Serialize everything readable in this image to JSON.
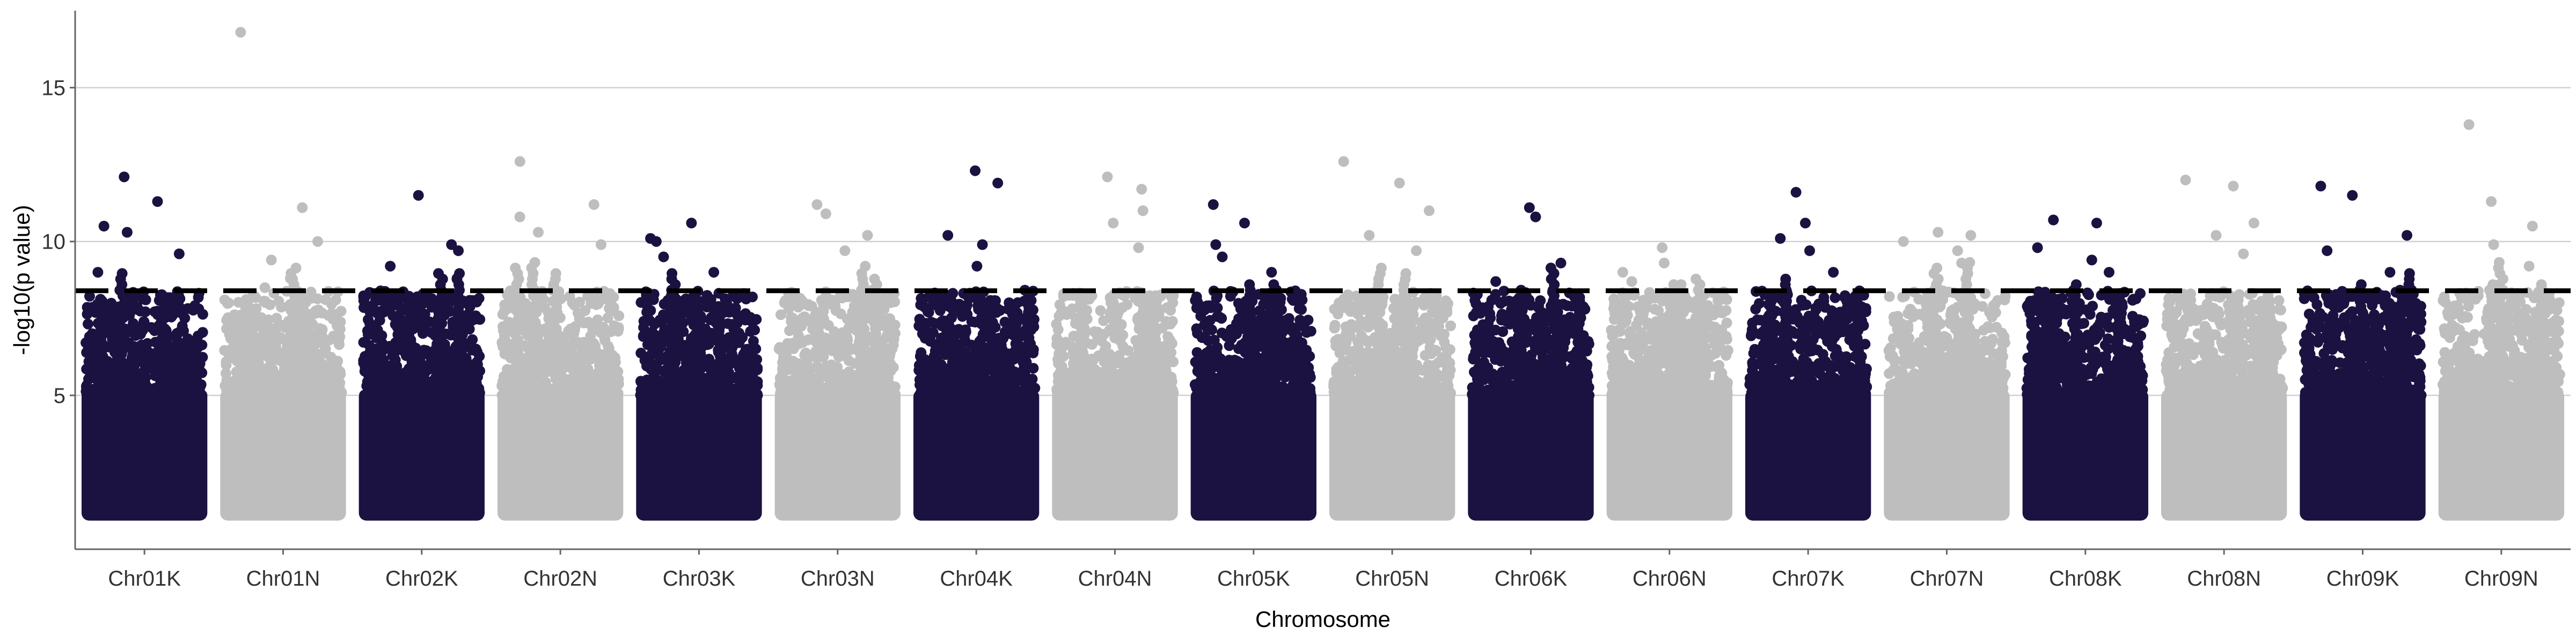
{
  "chart_data": {
    "type": "scatter",
    "subtype": "manhattan",
    "xlabel": "Chromosome",
    "ylabel": "-log10(p value)",
    "ylim": [
      0,
      17.5
    ],
    "yticks": [
      5,
      10,
      15
    ],
    "grid": "horizontal major lines",
    "legend": "none",
    "threshold": 8.4,
    "colors": {
      "odd": "#1c1241",
      "even": "#bebebe",
      "threshold": "#000000",
      "grid": "#d0d0d0",
      "axis": "#666666"
    },
    "categories": [
      "Chr01K",
      "Chr01N",
      "Chr02K",
      "Chr02N",
      "Chr03K",
      "Chr03N",
      "Chr04K",
      "Chr04N",
      "Chr05K",
      "Chr05N",
      "Chr06K",
      "Chr06N",
      "Chr07K",
      "Chr07N",
      "Chr08K",
      "Chr08N",
      "Chr09K",
      "Chr09N"
    ],
    "series": [
      {
        "category": "Chr01K",
        "peak_max": 12.1,
        "top_points": [
          10.3,
          9.6,
          9.0,
          12.1,
          11.3,
          10.5
        ]
      },
      {
        "category": "Chr01N",
        "peak_max": 16.8,
        "top_points": [
          16.8,
          11.1,
          10.0,
          9.4,
          8.8,
          8.5
        ]
      },
      {
        "category": "Chr02K",
        "peak_max": 11.5,
        "top_points": [
          11.5,
          9.9,
          9.7,
          9.2,
          8.8
        ]
      },
      {
        "category": "Chr02N",
        "peak_max": 12.6,
        "top_points": [
          12.6,
          11.2,
          10.8,
          10.3,
          9.9
        ]
      },
      {
        "category": "Chr03K",
        "peak_max": 10.6,
        "top_points": [
          10.1,
          10.6,
          10.0,
          9.5,
          9.0
        ]
      },
      {
        "category": "Chr03N",
        "peak_max": 11.2,
        "top_points": [
          11.2,
          10.9,
          10.2,
          9.7,
          9.2
        ]
      },
      {
        "category": "Chr04K",
        "peak_max": 12.3,
        "top_points": [
          12.3,
          11.9,
          10.2,
          9.9,
          9.2
        ]
      },
      {
        "category": "Chr04N",
        "peak_max": 12.1,
        "top_points": [
          12.1,
          11.7,
          11.0,
          10.6,
          9.8
        ]
      },
      {
        "category": "Chr05K",
        "peak_max": 11.2,
        "top_points": [
          11.2,
          10.6,
          9.9,
          9.5,
          9.0
        ]
      },
      {
        "category": "Chr05N",
        "peak_max": 12.6,
        "top_points": [
          12.6,
          11.9,
          11.0,
          10.2,
          9.7
        ]
      },
      {
        "category": "Chr06K",
        "peak_max": 11.1,
        "top_points": [
          11.1,
          10.8,
          9.3,
          8.7
        ]
      },
      {
        "category": "Chr06N",
        "peak_max": 9.8,
        "top_points": [
          9.8,
          9.3,
          9.0,
          8.7
        ]
      },
      {
        "category": "Chr07K",
        "peak_max": 11.6,
        "top_points": [
          11.6,
          10.6,
          10.1,
          9.7,
          9.0
        ]
      },
      {
        "category": "Chr07N",
        "peak_max": 10.3,
        "top_points": [
          10.3,
          10.2,
          10.0,
          9.7,
          9.3
        ]
      },
      {
        "category": "Chr08K",
        "peak_max": 10.7,
        "top_points": [
          10.7,
          10.6,
          9.8,
          9.4,
          9.0
        ]
      },
      {
        "category": "Chr08N",
        "peak_max": 12.0,
        "top_points": [
          12.0,
          11.8,
          10.6,
          10.2,
          9.6
        ]
      },
      {
        "category": "Chr09K",
        "peak_max": 11.8,
        "top_points": [
          11.8,
          11.5,
          10.2,
          9.7,
          9.0
        ]
      },
      {
        "category": "Chr09N",
        "peak_max": 13.8,
        "top_points": [
          13.8,
          11.3,
          10.5,
          9.9,
          9.2
        ]
      }
    ],
    "baseline_range": [
      1.0,
      5.0
    ],
    "xlim": [
      0,
      18
    ]
  }
}
